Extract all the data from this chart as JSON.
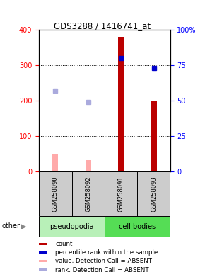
{
  "title": "GDS3288 / 1416741_at",
  "samples": [
    "GSM258090",
    "GSM258092",
    "GSM258091",
    "GSM258093"
  ],
  "count_values": [
    null,
    null,
    380,
    200
  ],
  "count_absent": [
    50,
    32,
    null,
    null
  ],
  "rank_values": [
    null,
    null,
    320,
    292
  ],
  "rank_absent": [
    228,
    197,
    null,
    null
  ],
  "ylim_left": [
    0,
    400
  ],
  "ylim_right": [
    0,
    100
  ],
  "yticks_left": [
    0,
    100,
    200,
    300,
    400
  ],
  "yticks_right": [
    0,
    25,
    50,
    75,
    100
  ],
  "ytick_right_labels": [
    "0",
    "25",
    "50",
    "75",
    "100%"
  ],
  "bar_color_count": "#bb0000",
  "bar_color_absent": "#ffaaaa",
  "marker_color_rank": "#0000cc",
  "marker_color_rank_absent": "#aaaadd",
  "legend_items": [
    {
      "label": "count",
      "color": "#bb0000"
    },
    {
      "label": "percentile rank within the sample",
      "color": "#0000cc"
    },
    {
      "label": "value, Detection Call = ABSENT",
      "color": "#ffaaaa"
    },
    {
      "label": "rank, Detection Call = ABSENT",
      "color": "#aaaadd"
    }
  ],
  "pseudopodia_label": "pseudopodia",
  "cell_bodies_label": "cell bodies",
  "pseudopodia_color": "#b8f0b8",
  "cell_bodies_color": "#55dd55",
  "bar_width": 0.18
}
